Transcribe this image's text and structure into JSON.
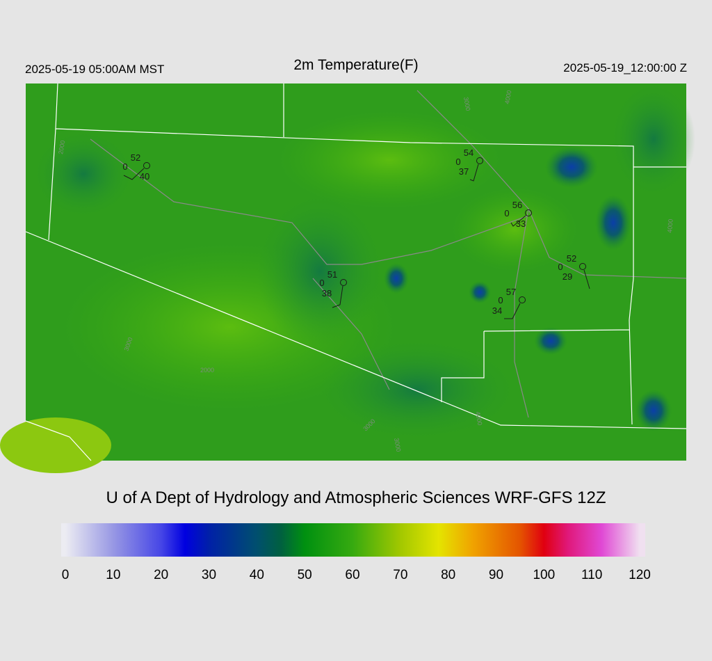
{
  "header": {
    "left": "2025-05-19 05:00AM MST",
    "title": "2m Temperature(F)",
    "right": "2025-05-19_12:00:00 Z"
  },
  "footer": "U of A Dept of Hydrology and Atmospheric Sciences WRF-GFS 12Z",
  "stations": [
    {
      "temperature": 52,
      "wind": 0,
      "dewpoint": 40
    },
    {
      "temperature": 54,
      "wind": 0,
      "dewpoint": 37
    },
    {
      "temperature": 56,
      "wind": 0,
      "dewpoint": 33
    },
    {
      "temperature": 52,
      "wind": 0,
      "dewpoint": 29
    },
    {
      "temperature": 51,
      "wind": 0,
      "dewpoint": 38
    },
    {
      "temperature": 57,
      "wind": 0,
      "dewpoint": 34
    }
  ],
  "contour_labels": [
    2000,
    3000,
    4000,
    3000,
    2000,
    3000,
    3000,
    4000,
    4000
  ],
  "colorbar": {
    "ticks": [
      0,
      10,
      20,
      30,
      40,
      50,
      60,
      70,
      80,
      90,
      100,
      110,
      120
    ],
    "stops": [
      {
        "value": 0,
        "color": "#ececf2"
      },
      {
        "value": 10,
        "color": "#9898e4"
      },
      {
        "value": 20,
        "color": "#4646e6"
      },
      {
        "value": 25,
        "color": "#0000e0"
      },
      {
        "value": 30,
        "color": "#0020a8"
      },
      {
        "value": 40,
        "color": "#004f6e"
      },
      {
        "value": 45,
        "color": "#006040"
      },
      {
        "value": 50,
        "color": "#009010"
      },
      {
        "value": 60,
        "color": "#36aa10"
      },
      {
        "value": 70,
        "color": "#a2c800"
      },
      {
        "value": 78,
        "color": "#e4e400"
      },
      {
        "value": 85,
        "color": "#f0a400"
      },
      {
        "value": 95,
        "color": "#e45400"
      },
      {
        "value": 100,
        "color": "#e00010"
      },
      {
        "value": 105,
        "color": "#e0187a"
      },
      {
        "value": 112,
        "color": "#e048d4"
      },
      {
        "value": 120,
        "color": "#f0e0f0"
      }
    ]
  }
}
